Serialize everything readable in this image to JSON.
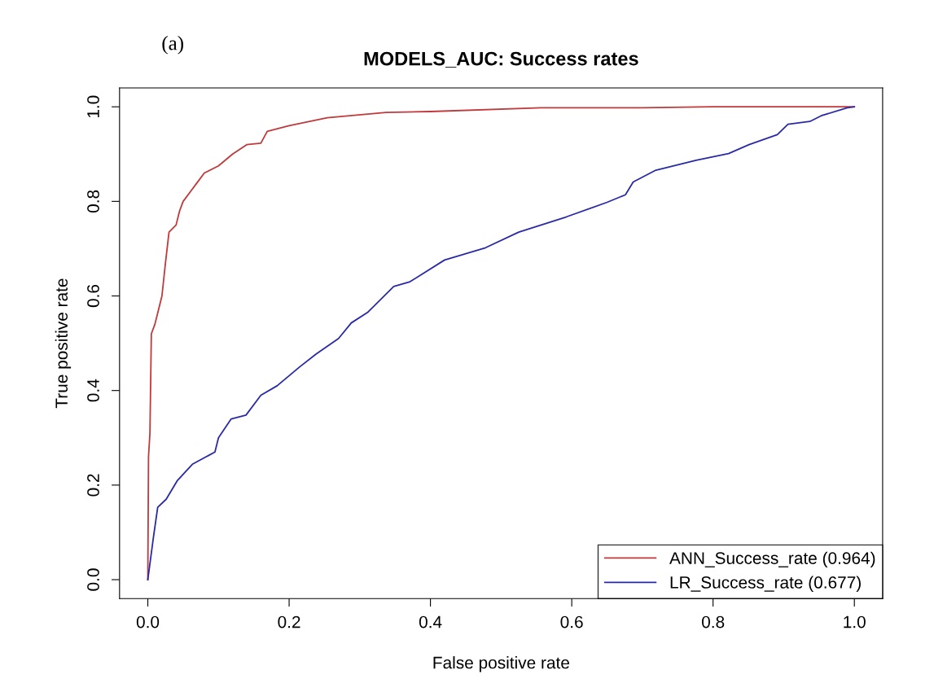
{
  "chart_data": {
    "type": "line",
    "title": "MODELS_AUC: Success rates",
    "xlabel": "False positive rate",
    "ylabel": "True positive rate",
    "annotations": [
      "(a)"
    ],
    "xlim": [
      -0.04,
      1.04
    ],
    "ylim": [
      -0.04,
      1.04
    ],
    "xticks": [
      {
        "value": 0,
        "label": "0.0"
      },
      0.2,
      0.4,
      0.6,
      0.8,
      {
        "value": 1,
        "label": "1.0"
      }
    ],
    "yticks": [
      {
        "value": 0,
        "label": "0.0"
      },
      0.2,
      0.4,
      0.6,
      0.8,
      {
        "value": 1,
        "label": "1.0"
      }
    ],
    "grid": false,
    "legend": "bottom right",
    "line_style": "solid",
    "marker": "none",
    "series": [
      {
        "name": "ANN_Success_rate (0.964)",
        "color": "#c0393b",
        "x": [
          0,
          0.001,
          0.003,
          0.005,
          0.01,
          0.015,
          0.02,
          0.025,
          0.03,
          0.04,
          0.045,
          0.05,
          0.06,
          0.07,
          0.08,
          0.1,
          0.12,
          0.14,
          0.16,
          0.169,
          0.2,
          0.254,
          0.337,
          0.4,
          0.557,
          0.7,
          0.8,
          0.98,
          1.0
        ],
        "values": [
          0,
          0.26,
          0.31,
          0.52,
          0.54,
          0.57,
          0.6,
          0.67,
          0.735,
          0.75,
          0.78,
          0.8,
          0.82,
          0.84,
          0.86,
          0.875,
          0.9,
          0.92,
          0.923,
          0.948,
          0.96,
          0.977,
          0.988,
          0.99,
          0.998,
          0.998,
          1.0,
          1.0,
          1.0
        ]
      },
      {
        "name": "LR_Success_rate (0.677)",
        "color": "#2a2aa8",
        "x": [
          0,
          0.008,
          0.014,
          0.026,
          0.042,
          0.063,
          0.095,
          0.1,
          0.118,
          0.139,
          0.16,
          0.183,
          0.215,
          0.238,
          0.27,
          0.288,
          0.311,
          0.348,
          0.371,
          0.42,
          0.478,
          0.525,
          0.592,
          0.65,
          0.676,
          0.687,
          0.719,
          0.776,
          0.822,
          0.851,
          0.891,
          0.906,
          0.937,
          0.953,
          0.99,
          1.0
        ],
        "values": [
          0,
          0.09,
          0.153,
          0.17,
          0.21,
          0.244,
          0.27,
          0.3,
          0.34,
          0.348,
          0.39,
          0.41,
          0.45,
          0.477,
          0.51,
          0.543,
          0.565,
          0.62,
          0.63,
          0.676,
          0.702,
          0.735,
          0.767,
          0.798,
          0.814,
          0.841,
          0.866,
          0.887,
          0.901,
          0.92,
          0.941,
          0.963,
          0.969,
          0.981,
          0.998,
          1.0
        ]
      }
    ]
  }
}
